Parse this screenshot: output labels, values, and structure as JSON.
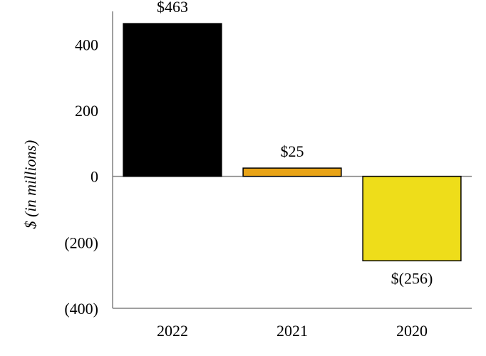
{
  "chart_data": {
    "type": "bar",
    "categories": [
      "2022",
      "2021",
      "2020"
    ],
    "values": [
      463,
      25,
      -256
    ],
    "data_labels": [
      "$463",
      "$25",
      "$(256)"
    ],
    "colors": [
      "#000000",
      "#E8A317",
      "#EEDD1A"
    ],
    "ylabel": "$ (in millions)",
    "ylim": [
      -400,
      500
    ],
    "yticks": [
      400,
      200,
      0,
      -200,
      -400
    ],
    "ytick_labels": [
      "400",
      "200",
      "0",
      "(200)",
      "(400)"
    ],
    "grid": false,
    "legend": "none"
  }
}
